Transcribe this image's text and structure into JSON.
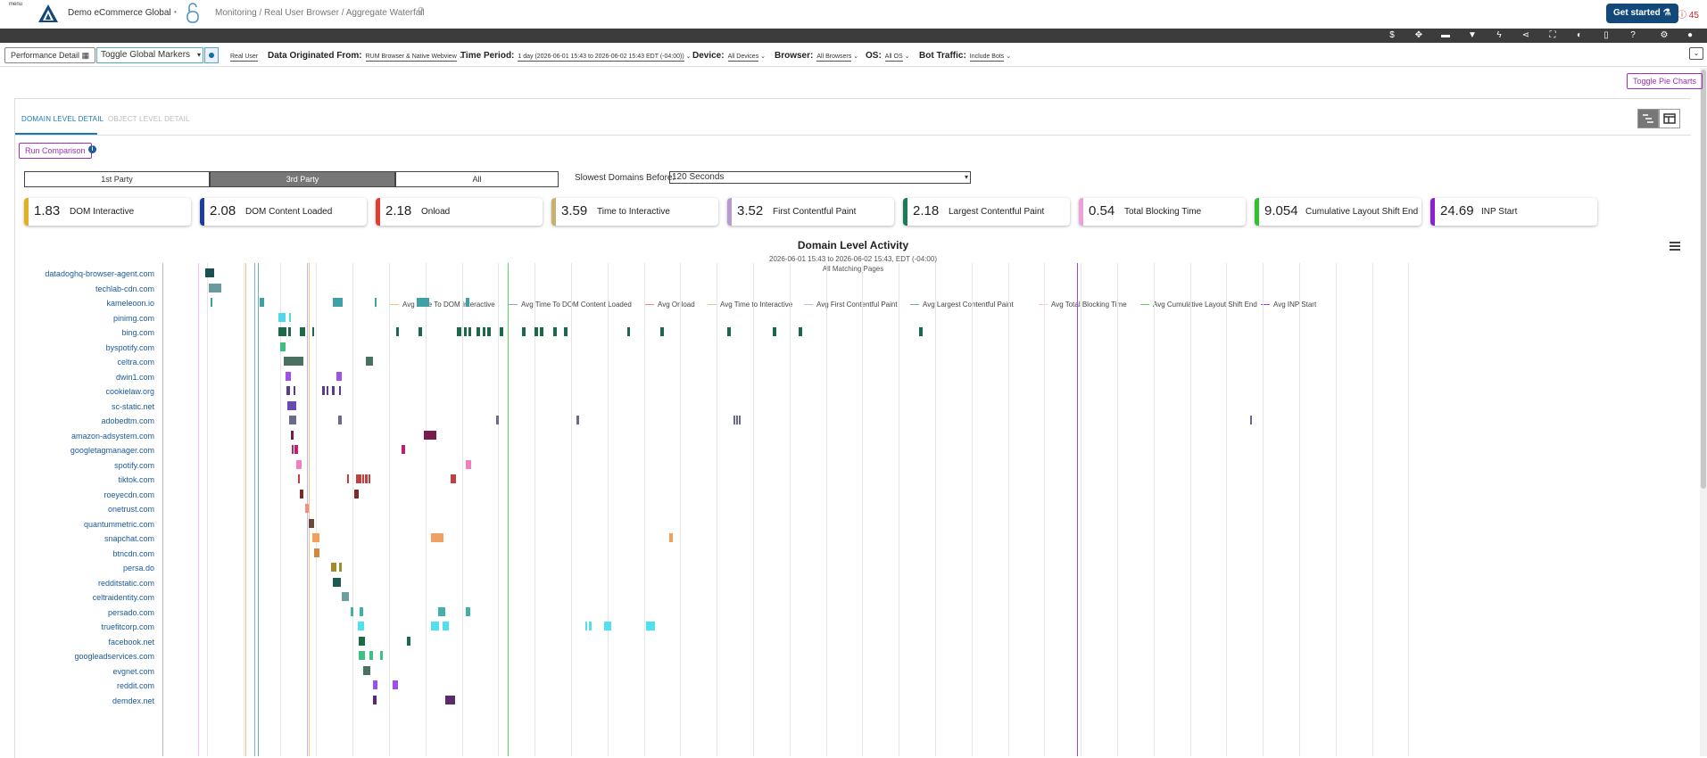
{
  "header": {
    "menu_label": "menu",
    "account": "Demo eCommerce Global",
    "breadcrumb": "Monitoring / Real User Browser / Aggregate Waterfall",
    "get_started": "Get started",
    "alerts_count": "45"
  },
  "filters": {
    "perf_detail": "Performance Detail",
    "toggle_markers": "Toggle Global Markers",
    "real_user": "Real User",
    "data_origin_label": "Data Originated From:",
    "data_origin_value": "RUM Browser & Native Webview",
    "time_period_label": "Time Period:",
    "time_period_value": "1 day (2026-06-01 15:43 to 2026-06-02 15:43 EDT (-04:00))",
    "device_label": "Device:",
    "device_value": "All Devices",
    "browser_label": "Browser:",
    "browser_value": "All Browsers",
    "os_label": "OS:",
    "os_value": "All OS",
    "bot_label": "Bot Traffic:",
    "bot_value": "Include Bots"
  },
  "toggle_pie": "Toggle Pie Charts",
  "tabs": {
    "domain": "DOMAIN LEVEL DETAIL",
    "object": "OBJECT LEVEL DETAIL"
  },
  "run_comparison": "Run Comparison",
  "party": {
    "first": "1st Party",
    "third": "3rd Party",
    "all": "All",
    "selected": "3rd Party"
  },
  "slowest": {
    "label": "Slowest Domains Before:",
    "value": "120 Seconds"
  },
  "kpis": [
    {
      "value": "1.83",
      "label": "DOM Interactive",
      "color": "#e0b020"
    },
    {
      "value": "2.08",
      "label": "DOM Content Loaded",
      "color": "#1a3fa0"
    },
    {
      "value": "2.18",
      "label": "Onload",
      "color": "#e04030"
    },
    {
      "value": "3.59",
      "label": "Time to Interactive",
      "color": "#c8b070"
    },
    {
      "value": "3.52",
      "label": "First Contentful Paint",
      "color": "#b89ad0"
    },
    {
      "value": "2.18",
      "label": "Largest Contentful Paint",
      "color": "#1a7a5a"
    },
    {
      "value": "0.54",
      "label": "Total Blocking Time",
      "color": "#f0a0d8"
    },
    {
      "value": "9.054",
      "label": "Cumulative Layout Shift End",
      "color": "#30c030"
    },
    {
      "value": "24.69",
      "label": "INP Start",
      "color": "#8a20d0"
    }
  ],
  "chart": {
    "title": "Domain Level Activity",
    "subtitle": "2026-06-01 15:43 to 2026-06-02 15:43, EDT (-04:00)",
    "subtitle2": "All Matching Pages",
    "legend": [
      {
        "label": "Avg Time To DOM Interactive",
        "color": "#f0c080"
      },
      {
        "label": "Avg Time To DOM Content Loaded",
        "color": "#80a8e0"
      },
      {
        "label": "Avg Onload",
        "color": "#f09080"
      },
      {
        "label": "Avg Time to Interactive",
        "color": "#e0c890"
      },
      {
        "label": "Avg First Contentful Paint",
        "color": "#c8b8e0"
      },
      {
        "label": "Avg Largest Contentful Paint",
        "color": "#70b0a0"
      },
      {
        "label": "Avg Total Blocking Time",
        "color": "#f8c0e8"
      },
      {
        "label": "Avg Cumulative Layout Shift End",
        "color": "#60d060"
      },
      {
        "label": "Avg INP Start",
        "color": "#a040e0"
      }
    ]
  },
  "chart_data": {
    "type": "waterfall",
    "rows": [
      {
        "domain": "datadoghq-browser-agent.com",
        "color": "#1a5050",
        "segs": [
          [
            0.0,
            0.25
          ]
        ]
      },
      {
        "domain": "techlab-cdn.com",
        "color": "#6a9aa0",
        "segs": [
          [
            0.1,
            0.45
          ]
        ]
      },
      {
        "domain": "kameleoon.io",
        "color": "#40a0a8",
        "segs": [
          [
            0.15,
            0.2
          ],
          [
            1.5,
            1.62
          ],
          [
            3.5,
            3.78
          ],
          [
            4.65,
            4.68
          ],
          [
            5.8,
            6.15
          ],
          [
            7.15,
            7.25
          ]
        ]
      },
      {
        "domain": "pinimg.com",
        "color": "#50d8e8",
        "segs": [
          [
            2.0,
            2.2
          ],
          [
            2.3,
            2.35
          ]
        ]
      },
      {
        "domain": "bing.com",
        "color": "#1a6a4a",
        "segs": [
          [
            2.0,
            2.22
          ],
          [
            2.27,
            2.35
          ],
          [
            2.6,
            2.75
          ],
          [
            2.95,
            3.0
          ],
          [
            5.25,
            5.33
          ],
          [
            5.85,
            5.95
          ],
          [
            6.9,
            7.02
          ],
          [
            7.12,
            7.2
          ],
          [
            7.22,
            7.3
          ],
          [
            7.45,
            7.55
          ],
          [
            7.62,
            7.7
          ],
          [
            7.75,
            7.85
          ],
          [
            8.1,
            8.2
          ],
          [
            8.7,
            8.8
          ],
          [
            9.05,
            9.15
          ],
          [
            9.2,
            9.3
          ],
          [
            9.55,
            9.65
          ],
          [
            9.85,
            9.95
          ],
          [
            11.6,
            11.68
          ],
          [
            12.5,
            12.6
          ],
          [
            14.35,
            14.45
          ],
          [
            15.6,
            15.7
          ],
          [
            16.3,
            16.4
          ],
          [
            19.6,
            19.7
          ]
        ]
      },
      {
        "domain": "byspotify.com",
        "color": "#40c080",
        "segs": [
          [
            2.05,
            2.2
          ]
        ]
      },
      {
        "domain": "celtra.com",
        "color": "#4a7060",
        "segs": [
          [
            2.15,
            2.7
          ],
          [
            4.4,
            4.6
          ]
        ]
      },
      {
        "domain": "dwin1.com",
        "color": "#a050e8",
        "segs": [
          [
            2.2,
            2.35
          ],
          [
            3.6,
            3.75
          ]
        ]
      },
      {
        "domain": "cookielaw.org",
        "color": "#5a3a8a",
        "segs": [
          [
            2.22,
            2.32
          ],
          [
            2.42,
            2.48
          ],
          [
            3.2,
            3.28
          ],
          [
            3.34,
            3.38
          ],
          [
            3.48,
            3.55
          ],
          [
            3.68,
            3.72
          ]
        ]
      },
      {
        "domain": "sc-static.net",
        "color": "#6a4ab0",
        "segs": [
          [
            2.25,
            2.5
          ]
        ]
      },
      {
        "domain": "adobedtm.com",
        "color": "#6a6a8a",
        "segs": [
          [
            2.3,
            2.5
          ],
          [
            3.65,
            3.75
          ],
          [
            8.0,
            8.08
          ],
          [
            10.2,
            10.28
          ],
          [
            14.5,
            14.54
          ],
          [
            14.58,
            14.62
          ],
          [
            14.66,
            14.7
          ],
          [
            28.7,
            28.75
          ]
        ]
      },
      {
        "domain": "amazon-adsystem.com",
        "color": "#7a1a4a",
        "segs": [
          [
            2.35,
            2.42
          ],
          [
            6.0,
            6.35
          ]
        ]
      },
      {
        "domain": "googletagmanager.com",
        "color": "#c02070",
        "segs": [
          [
            2.38,
            2.42
          ],
          [
            2.45,
            2.55
          ],
          [
            5.4,
            5.5
          ]
        ]
      },
      {
        "domain": "spotify.com",
        "color": "#f080c0",
        "segs": [
          [
            2.5,
            2.65
          ],
          [
            7.15,
            7.3
          ]
        ]
      },
      {
        "domain": "tiktok.com",
        "color": "#c04040",
        "segs": [
          [
            2.55,
            2.6
          ],
          [
            3.9,
            3.94
          ],
          [
            4.15,
            4.3
          ],
          [
            4.32,
            4.35
          ],
          [
            4.38,
            4.45
          ],
          [
            4.48,
            4.52
          ],
          [
            6.75,
            6.9
          ]
        ]
      },
      {
        "domain": "roeyecdn.com",
        "color": "#7a2a2a",
        "segs": [
          [
            2.6,
            2.7
          ],
          [
            4.1,
            4.22
          ]
        ]
      },
      {
        "domain": "onetrust.com",
        "color": "#f09080",
        "segs": [
          [
            2.75,
            2.85
          ]
        ]
      },
      {
        "domain": "quantummetric.com",
        "color": "#6a4a3a",
        "segs": [
          [
            2.85,
            3.0
          ]
        ]
      },
      {
        "domain": "snapchat.com",
        "color": "#f0a060",
        "segs": [
          [
            2.95,
            3.15
          ],
          [
            6.2,
            6.55
          ],
          [
            12.75,
            12.85
          ]
        ]
      },
      {
        "domain": "btncdn.com",
        "color": "#d08a40",
        "segs": [
          [
            3.0,
            3.15
          ]
        ]
      },
      {
        "domain": "persa.do",
        "color": "#a08a2a",
        "segs": [
          [
            3.45,
            3.6
          ],
          [
            3.68,
            3.75
          ]
        ]
      },
      {
        "domain": "redditstatic.com",
        "color": "#1a5a50",
        "segs": [
          [
            3.5,
            3.72
          ]
        ]
      },
      {
        "domain": "celtraidentity.com",
        "color": "#6aa0a0",
        "segs": [
          [
            3.75,
            3.95
          ]
        ]
      },
      {
        "domain": "persado.com",
        "color": "#40b0a8",
        "segs": [
          [
            4.0,
            4.08
          ],
          [
            4.25,
            4.35
          ],
          [
            6.4,
            6.6
          ],
          [
            7.15,
            7.28
          ]
        ]
      },
      {
        "domain": "truefitcorp.com",
        "color": "#50e0f0",
        "segs": [
          [
            4.2,
            4.38
          ],
          [
            6.2,
            6.42
          ],
          [
            6.52,
            6.7
          ],
          [
            10.45,
            10.5
          ],
          [
            10.55,
            10.62
          ],
          [
            10.95,
            11.15
          ],
          [
            12.1,
            12.35
          ]
        ]
      },
      {
        "domain": "facebook.net",
        "color": "#1a6a4a",
        "segs": [
          [
            4.22,
            4.4
          ],
          [
            5.55,
            5.65
          ]
        ]
      },
      {
        "domain": "googleadservices.com",
        "color": "#40c080",
        "segs": [
          [
            4.22,
            4.4
          ],
          [
            4.52,
            4.62
          ],
          [
            4.8,
            4.88
          ]
        ]
      },
      {
        "domain": "evgnet.com",
        "color": "#4a7060",
        "segs": [
          [
            4.35,
            4.55
          ]
        ]
      },
      {
        "domain": "reddit.com",
        "color": "#a050e8",
        "segs": [
          [
            4.6,
            4.72
          ],
          [
            5.15,
            5.3
          ]
        ]
      },
      {
        "domain": "demdex.net",
        "color": "#5a2a6a",
        "segs": [
          [
            4.6,
            4.7
          ],
          [
            6.6,
            6.88
          ]
        ]
      }
    ],
    "markers": [
      {
        "name": "Avg Time To DOM Interactive",
        "value": 1.83
      },
      {
        "name": "Avg Time To DOM Content Loaded",
        "value": 2.08
      },
      {
        "name": "Avg Onload",
        "value": 2.18
      },
      {
        "name": "Avg Time to Interactive",
        "value": 3.59
      },
      {
        "name": "Avg First Contentful Paint",
        "value": 3.52
      },
      {
        "name": "Avg Largest Contentful Paint",
        "value": 2.18
      },
      {
        "name": "Avg Total Blocking Time",
        "value": 0.54
      },
      {
        "name": "Avg Cumulative Layout Shift End",
        "value": 9.054
      },
      {
        "name": "Avg INP Start",
        "value": 24.69
      }
    ]
  }
}
